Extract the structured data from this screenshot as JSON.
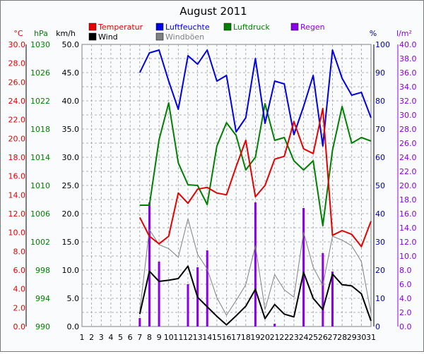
{
  "chart_data": {
    "type": "line",
    "title": "August 2011",
    "x": [
      1,
      2,
      3,
      4,
      5,
      6,
      7,
      8,
      9,
      10,
      11,
      12,
      13,
      14,
      15,
      16,
      17,
      18,
      19,
      20,
      21,
      22,
      23,
      24,
      25,
      26,
      27,
      28,
      29,
      30,
      31
    ],
    "legend": [
      {
        "key": "temp",
        "label": "Temperatur",
        "color": "#e60000"
      },
      {
        "key": "hum",
        "label": "Luftfeuchte",
        "color": "#0000e6"
      },
      {
        "key": "pres",
        "label": "Luftdruck",
        "color": "#008000"
      },
      {
        "key": "rain",
        "label": "Regen",
        "color": "#8a00e6"
      },
      {
        "key": "wind",
        "label": "Wind",
        "color": "#000000"
      },
      {
        "key": "gust",
        "label": "Windböen",
        "color": "#808080"
      }
    ],
    "axes": {
      "temp": {
        "unit": "°C",
        "min": 0,
        "max": 30,
        "step": 2,
        "decimals": 1,
        "color": "#e60000"
      },
      "pres": {
        "unit": "hPa",
        "min": 990,
        "max": 1030,
        "step": 4,
        "decimals": 0,
        "color": "#008000"
      },
      "wind": {
        "unit": "km/h",
        "min": 0,
        "max": 50,
        "step": 5,
        "decimals": 1,
        "color": "#000000"
      },
      "hum": {
        "unit": "%",
        "min": 0,
        "max": 100,
        "step": 10,
        "decimals": 0,
        "color": "#0000aa"
      },
      "rain": {
        "unit": "l/m²",
        "min": 0,
        "max": 40,
        "step": 2,
        "decimals": 1,
        "color": "#8a00e6"
      }
    },
    "series": [
      {
        "key": "temp",
        "name": "Temperatur",
        "x": [
          7,
          8,
          9,
          10,
          11,
          12,
          13,
          14,
          15,
          16,
          17,
          18,
          19,
          20,
          21,
          22,
          23,
          24,
          25,
          26,
          27,
          28,
          29,
          30,
          31
        ],
        "values": [
          11.6,
          9.6,
          8.8,
          9.6,
          14.2,
          13.1,
          14.6,
          14.8,
          14.2,
          14.0,
          17.0,
          19.8,
          13.8,
          15.0,
          17.8,
          18.1,
          21.8,
          18.9,
          18.4,
          23.2,
          9.7,
          10.2,
          9.8,
          8.5,
          11.2
        ]
      },
      {
        "key": "hum",
        "name": "Luftfeuchte",
        "x": [
          7,
          8,
          9,
          10,
          11,
          12,
          13,
          14,
          15,
          16,
          17,
          18,
          19,
          20,
          21,
          22,
          23,
          24,
          25,
          26,
          27,
          28,
          29,
          30,
          31
        ],
        "values": [
          90,
          97,
          98,
          87,
          77,
          96,
          93,
          98,
          87,
          89,
          69,
          74,
          95,
          72,
          87,
          86,
          68,
          78,
          89,
          64,
          98,
          88,
          82,
          83,
          74
        ]
      },
      {
        "key": "pres",
        "name": "Luftdruck",
        "x": [
          7,
          8,
          9,
          10,
          11,
          12,
          13,
          14,
          15,
          16,
          17,
          18,
          19,
          20,
          21,
          22,
          23,
          24,
          25,
          26,
          27,
          28,
          29,
          30,
          31
        ],
        "values": [
          1007.2,
          1007.2,
          1016.5,
          1021.7,
          1013.2,
          1010.1,
          1010.0,
          1007.3,
          1015.6,
          1018.9,
          1017.1,
          1012.2,
          1014.0,
          1021.6,
          1016.4,
          1016.8,
          1013.5,
          1012.2,
          1013.5,
          1004.3,
          1015.0,
          1021.2,
          1016.0,
          1016.8,
          1016.3
        ]
      },
      {
        "key": "wind",
        "name": "Wind",
        "x": [
          7,
          8,
          9,
          10,
          11,
          12,
          13,
          14,
          15,
          16,
          17,
          18,
          19,
          20,
          21,
          22,
          23,
          24,
          25,
          26,
          27,
          28,
          29,
          30,
          31
        ],
        "values": [
          2.2,
          9.8,
          8.0,
          8.2,
          8.5,
          10.7,
          5.2,
          3.5,
          1.8,
          0.3,
          1.9,
          3.6,
          6.6,
          1.4,
          3.9,
          2.2,
          1.7,
          9.6,
          5.0,
          3.0,
          9.3,
          7.4,
          7.2,
          5.8,
          1.0
        ]
      },
      {
        "key": "gust",
        "name": "Windböen",
        "x": [
          7,
          8,
          9,
          10,
          11,
          12,
          13,
          14,
          15,
          16,
          17,
          18,
          19,
          20,
          21,
          22,
          23,
          24,
          25,
          26,
          27,
          28,
          29,
          30,
          31
        ],
        "values": [
          2.7,
          17.2,
          14.5,
          13.8,
          12.3,
          19.1,
          12.8,
          10.2,
          5.1,
          2.0,
          4.6,
          7.4,
          14.3,
          3.0,
          9.2,
          6.5,
          5.2,
          16.7,
          10.5,
          7.3,
          16.0,
          15.3,
          14.3,
          11.5,
          2.3
        ]
      },
      {
        "key": "rain",
        "name": "Regen",
        "x": [
          7,
          8,
          9,
          12,
          13,
          14,
          19,
          21,
          24,
          26,
          27
        ],
        "values": [
          1.2,
          17.6,
          9.2,
          6.0,
          8.4,
          10.8,
          17.6,
          0.4,
          16.8,
          10.4,
          7.8
        ]
      }
    ]
  }
}
